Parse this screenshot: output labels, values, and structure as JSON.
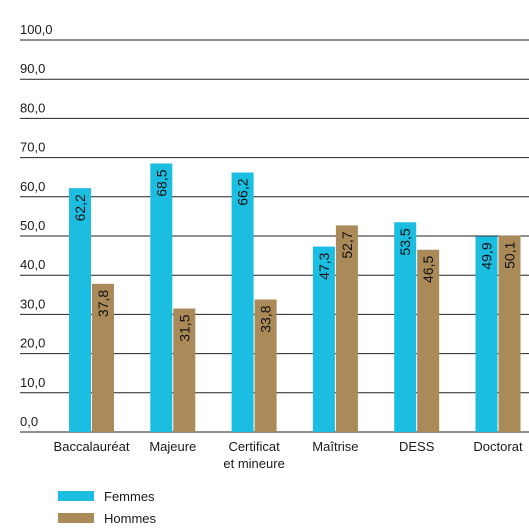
{
  "chart_data": {
    "type": "bar",
    "categories": [
      [
        "Baccalauréat"
      ],
      [
        "Majeure"
      ],
      [
        "Certificat",
        "et mineure"
      ],
      [
        "Maîtrise"
      ],
      [
        "DESS"
      ],
      [
        "Doctorat"
      ]
    ],
    "series": [
      {
        "name": "Femmes",
        "values": [
          62.2,
          68.5,
          66.2,
          47.3,
          53.5,
          49.9
        ],
        "labels": [
          "62,2",
          "68,5",
          "66,2",
          "47,3",
          "53,5",
          "49,9"
        ],
        "color": "#1bbde0"
      },
      {
        "name": "Hommes",
        "values": [
          37.8,
          31.5,
          33.8,
          52.7,
          46.5,
          50.1
        ],
        "labels": [
          "37,8",
          "31,5",
          "33,8",
          "52,7",
          "46,5",
          "50,1"
        ],
        "color": "#a98a58"
      }
    ],
    "ylim": [
      0,
      100
    ],
    "yticks": [
      0,
      10,
      20,
      30,
      40,
      50,
      60,
      70,
      80,
      90,
      100
    ],
    "ytick_labels": [
      "0,0",
      "10,0",
      "20,0",
      "30,0",
      "40,0",
      "50,0",
      "60,0",
      "70,0",
      "80,0",
      "90,0",
      "100,0"
    ],
    "grid": true,
    "legend_position": "bottom-left"
  },
  "legend": {
    "items": [
      {
        "label": "Femmes",
        "color": "#1bbde0"
      },
      {
        "label": "Hommes",
        "color": "#a98a58"
      }
    ]
  }
}
